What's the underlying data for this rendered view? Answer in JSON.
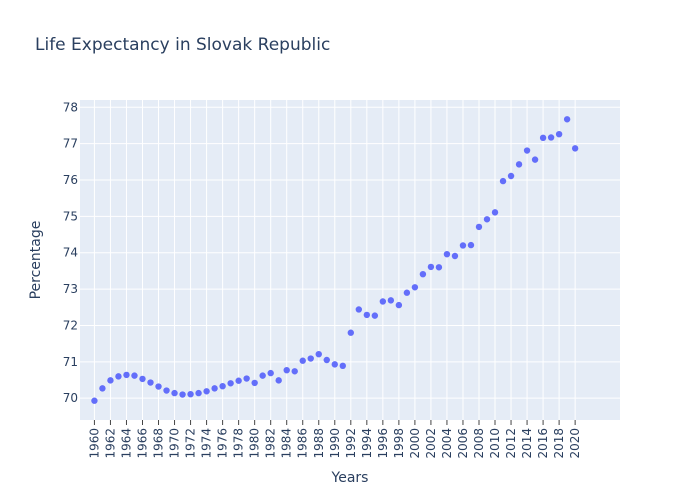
{
  "chart_data": {
    "type": "scatter",
    "title": "Life Expectancy in Slovak Republic",
    "xlabel": "Years",
    "ylabel": "Percentage",
    "xlim": [
      1958.2,
      2025.6
    ],
    "ylim": [
      69.4,
      78.2
    ],
    "x_ticks": [
      1960,
      1962,
      1964,
      1966,
      1968,
      1970,
      1972,
      1974,
      1976,
      1978,
      1980,
      1982,
      1984,
      1986,
      1988,
      1990,
      1992,
      1994,
      1996,
      1998,
      2000,
      2002,
      2004,
      2006,
      2008,
      2010,
      2012,
      2014,
      2016,
      2018,
      2020
    ],
    "y_ticks": [
      70,
      71,
      72,
      73,
      74,
      75,
      76,
      77,
      78
    ],
    "grid": true,
    "marker_color": "#636efa",
    "plot_bg": "#e5ecf6",
    "x": [
      1960,
      1961,
      1962,
      1963,
      1964,
      1965,
      1966,
      1967,
      1968,
      1969,
      1970,
      1971,
      1972,
      1973,
      1974,
      1975,
      1976,
      1977,
      1978,
      1979,
      1980,
      1981,
      1982,
      1983,
      1984,
      1985,
      1986,
      1987,
      1988,
      1989,
      1990,
      1991,
      1992,
      1993,
      1994,
      1995,
      1996,
      1997,
      1998,
      1999,
      2000,
      2001,
      2002,
      2003,
      2004,
      2005,
      2006,
      2007,
      2008,
      2009,
      2010,
      2011,
      2012,
      2013,
      2014,
      2015,
      2016,
      2017,
      2018,
      2019,
      2020
    ],
    "y": [
      69.93,
      70.27,
      70.49,
      70.6,
      70.64,
      70.62,
      70.53,
      70.43,
      70.32,
      70.21,
      70.14,
      70.1,
      70.11,
      70.14,
      70.19,
      70.27,
      70.33,
      70.41,
      70.48,
      70.54,
      70.42,
      70.62,
      70.69,
      70.49,
      70.77,
      70.74,
      71.03,
      71.09,
      71.21,
      71.05,
      70.93,
      70.89,
      71.8,
      72.44,
      72.29,
      72.27,
      72.66,
      72.69,
      72.56,
      72.9,
      73.05,
      73.41,
      73.61,
      73.6,
      73.96,
      73.91,
      74.2,
      74.21,
      74.71,
      74.92,
      75.11,
      75.97,
      76.11,
      76.43,
      76.81,
      76.56,
      77.16,
      77.17,
      77.26,
      77.67,
      76.87
    ]
  }
}
